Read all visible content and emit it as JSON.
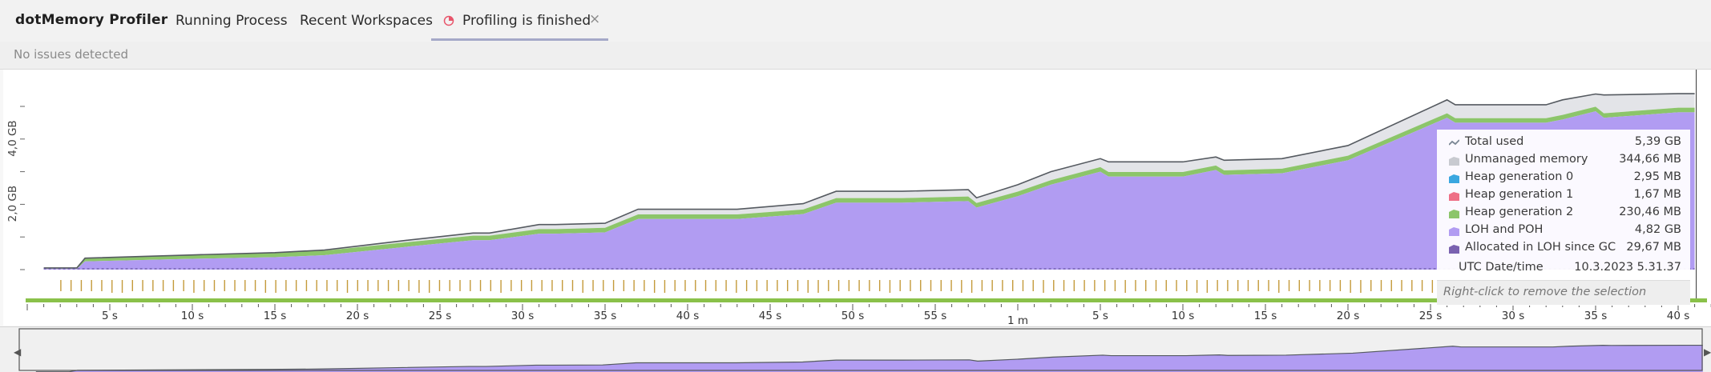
{
  "app": {
    "title": "dotMemory Profiler"
  },
  "tabs": [
    {
      "label": "Running Process"
    },
    {
      "label": "Recent Workspaces"
    },
    {
      "label": "Profiling is finished",
      "active": true
    }
  ],
  "status": {
    "text": "No issues detected"
  },
  "icons": {
    "tab_icon": "timeline-icon",
    "close": "close-icon",
    "scroll_left": "chevron-left-icon",
    "scroll_right": "chevron-right-icon"
  },
  "chart_data": {
    "type": "area",
    "y_axis": {
      "tick_labels": [
        "2,0 GB",
        "4,0 GB"
      ],
      "ticks_gb": [
        0,
        1,
        2,
        3,
        4,
        5
      ]
    },
    "x_axis": {
      "tick_labels": [
        "5 s",
        "10 s",
        "15 s",
        "20 s",
        "25 s",
        "30 s",
        "35 s",
        "40 s",
        "45 s",
        "50 s",
        "55 s",
        "1 m",
        "5 s",
        "10 s",
        "15 s",
        "20 s",
        "25 s",
        "30 s",
        "35 s",
        "40 s"
      ],
      "tick_seconds": [
        5,
        10,
        15,
        20,
        25,
        30,
        35,
        40,
        45,
        50,
        55,
        60,
        65,
        70,
        75,
        80,
        85,
        90,
        95,
        100
      ]
    },
    "time_s": [
      1,
      3,
      3.5,
      10,
      15,
      18,
      23,
      27,
      28,
      31,
      32,
      35,
      37,
      38,
      42,
      43,
      47,
      49,
      52,
      53,
      57,
      57.5,
      60,
      62,
      65,
      65.5,
      70,
      72,
      72.5,
      76,
      80,
      86,
      86.5,
      92,
      93,
      95,
      95.5,
      100,
      101
    ],
    "series": [
      {
        "name": "Total used",
        "values_gb": [
          0.05,
          0.05,
          0.35,
          0.45,
          0.52,
          0.6,
          0.9,
          1.12,
          1.12,
          1.38,
          1.38,
          1.42,
          1.85,
          1.85,
          1.85,
          1.85,
          2.02,
          2.4,
          2.4,
          2.4,
          2.45,
          2.2,
          2.6,
          3.0,
          3.4,
          3.3,
          3.3,
          3.45,
          3.35,
          3.4,
          3.8,
          5.2,
          5.05,
          5.05,
          5.2,
          5.38,
          5.35,
          5.39,
          5.39
        ]
      },
      {
        "name": "LOH and POH",
        "values_gb": [
          0.02,
          0.02,
          0.25,
          0.33,
          0.38,
          0.44,
          0.7,
          0.9,
          0.9,
          1.1,
          1.1,
          1.14,
          1.55,
          1.55,
          1.55,
          1.55,
          1.7,
          2.05,
          2.05,
          2.05,
          2.1,
          1.9,
          2.25,
          2.6,
          3.0,
          2.85,
          2.85,
          3.05,
          2.9,
          2.95,
          3.35,
          4.65,
          4.5,
          4.5,
          4.6,
          4.85,
          4.65,
          4.82,
          4.82
        ]
      }
    ],
    "legend": [
      {
        "name": "Total used",
        "value": "5,39 GB",
        "color": "#7b8794"
      },
      {
        "name": "Unmanaged memory",
        "value": "344,66 MB",
        "color": "#c8cad0"
      },
      {
        "name": "Heap generation 0",
        "value": "2,95 MB",
        "color": "#3aa7e0"
      },
      {
        "name": "Heap generation 1",
        "value": "1,67 MB",
        "color": "#ee6f86"
      },
      {
        "name": "Heap generation 2",
        "value": "230,46 MB",
        "color": "#8cc56a"
      },
      {
        "name": "LOH and POH",
        "value": "4,82 GB",
        "color": "#b19cf2"
      },
      {
        "name": "Allocated in LOH since GC",
        "value": "29,67 MB",
        "color": "#7a62b0"
      }
    ],
    "utc": {
      "label": "UTC Date/time",
      "value": "10.3.2023 5.31.37"
    },
    "hint": "Right-click to remove the selection",
    "colors": {
      "loh": "#b19cf2",
      "gen2": "#8cc56a",
      "unmanaged": "#e3e4e8",
      "total_line": "#555a60",
      "gc_marks": "#c49a3a",
      "timeline": "#8ac14a"
    }
  }
}
